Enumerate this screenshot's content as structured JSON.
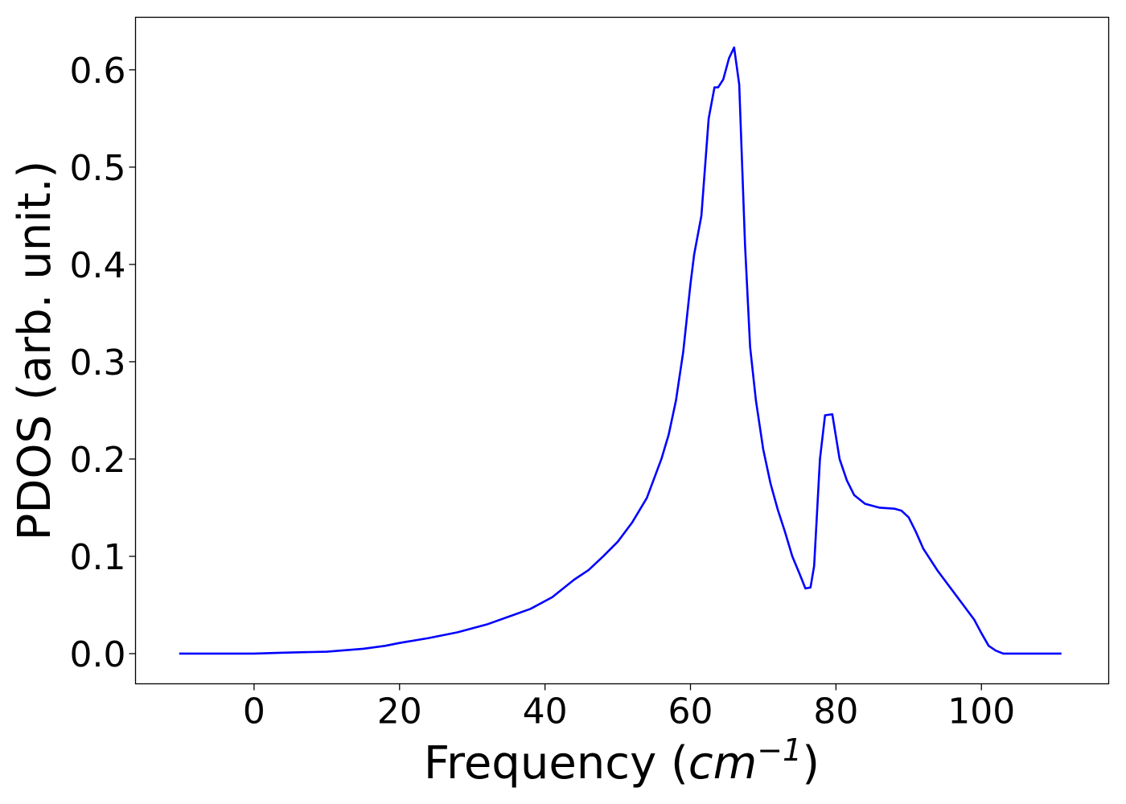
{
  "chart_data": {
    "type": "line",
    "title": "",
    "xlabel": "Frequency",
    "xlabel_unit": "cm",
    "xlabel_unit_exponent": "−1",
    "ylabel": "PDOS (arb. unit.)",
    "xlim": [
      -16.3,
      117.5
    ],
    "ylim": [
      -0.031,
      0.654
    ],
    "xticks": [
      0,
      20,
      40,
      60,
      80,
      100
    ],
    "xtick_labels": [
      "0",
      "20",
      "40",
      "60",
      "80",
      "100"
    ],
    "yticks": [
      0.0,
      0.1,
      0.2,
      0.3,
      0.4,
      0.5,
      0.6
    ],
    "ytick_labels": [
      "0.0",
      "0.1",
      "0.2",
      "0.3",
      "0.4",
      "0.5",
      "0.6"
    ],
    "grid": false,
    "legend": "none",
    "series": [
      {
        "color": "#0000ff",
        "x": [
          -10.3,
          0,
          4,
          10,
          15,
          18,
          20,
          24,
          28,
          32,
          35,
          38,
          41,
          44,
          46,
          48,
          50,
          52,
          54,
          56,
          57,
          58,
          59,
          60,
          60.5,
          61.5,
          62.5,
          63.3,
          63.8,
          64.5,
          65.3,
          66.0,
          66.7,
          67.5,
          68.2,
          69.0,
          70.0,
          71.0,
          72.0,
          73.0,
          74.0,
          75.0,
          75.8,
          76.5,
          77.0,
          77.8,
          78.5,
          79.5,
          80.5,
          81.5,
          82.5,
          84.0,
          86.0,
          88.0,
          89.0,
          90.0,
          91.0,
          92.0,
          94.0,
          96.0,
          98.0,
          99.0,
          100.0,
          101.0,
          102.0,
          103.0,
          104.0,
          106.0,
          111.0
        ],
        "y": [
          0.0,
          0.0,
          0.001,
          0.002,
          0.005,
          0.008,
          0.011,
          0.016,
          0.022,
          0.03,
          0.038,
          0.046,
          0.058,
          0.076,
          0.086,
          0.1,
          0.115,
          0.135,
          0.16,
          0.2,
          0.225,
          0.26,
          0.31,
          0.38,
          0.41,
          0.45,
          0.55,
          0.582,
          0.582,
          0.59,
          0.612,
          0.623,
          0.585,
          0.42,
          0.315,
          0.26,
          0.21,
          0.175,
          0.148,
          0.125,
          0.1,
          0.082,
          0.067,
          0.068,
          0.09,
          0.2,
          0.245,
          0.246,
          0.2,
          0.178,
          0.163,
          0.154,
          0.15,
          0.149,
          0.147,
          0.14,
          0.125,
          0.108,
          0.085,
          0.065,
          0.045,
          0.035,
          0.021,
          0.008,
          0.003,
          0.0,
          0.0,
          0.0,
          0.0
        ]
      }
    ]
  }
}
